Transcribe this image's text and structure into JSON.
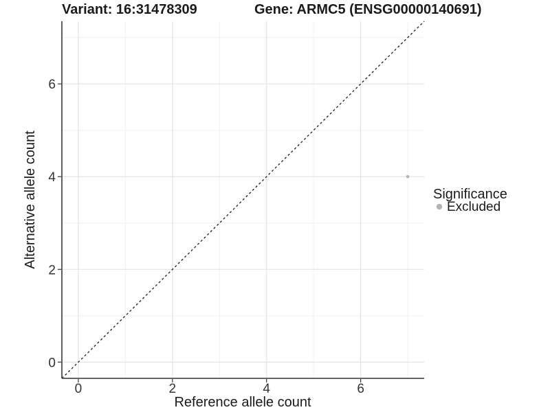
{
  "titles": {
    "left": "Variant: 16:31478309",
    "right": "Gene: ARMC5 (ENSG00000140691)"
  },
  "axes": {
    "x_label": "Reference allele count",
    "y_label": "Alternative allele count"
  },
  "legend": {
    "title": "Significance",
    "entries": [
      {
        "label": "Excluded",
        "color": "#b3b3b3"
      }
    ]
  },
  "colors": {
    "background": "#ffffff",
    "grid_major": "#e3e3e3",
    "grid_minor": "#f0f0f0",
    "axis_line": "#4d4d4d",
    "tick_mark": "#333333",
    "text": "#1a1a1a",
    "point": "#b9b9b9",
    "reference_line": "#1a1a1a"
  },
  "chart_data": {
    "type": "scatter",
    "title_left": "Variant: 16:31478309",
    "title_right": "Gene: ARMC5 (ENSG00000140691)",
    "xlabel": "Reference allele count",
    "ylabel": "Alternative allele count",
    "xlim": [
      -0.35,
      7.35
    ],
    "ylim": [
      -0.35,
      7.35
    ],
    "x_ticks": [
      0,
      2,
      4,
      6
    ],
    "y_ticks": [
      0,
      2,
      4,
      6
    ],
    "x_minor_ticks": [
      1,
      3,
      5,
      7
    ],
    "y_minor_ticks": [
      1,
      3,
      5,
      7
    ],
    "grid": "major and minor gridlines, white panel background",
    "legend_title": "Significance",
    "legend_position": "right",
    "reference_line": {
      "type": "identity",
      "slope": 1,
      "intercept": 0,
      "style": "dashed",
      "color": "#1a1a1a"
    },
    "series": [
      {
        "name": "Excluded",
        "color": "#b9b9b9",
        "points": [
          {
            "x": 7,
            "y": 4
          }
        ]
      }
    ]
  }
}
